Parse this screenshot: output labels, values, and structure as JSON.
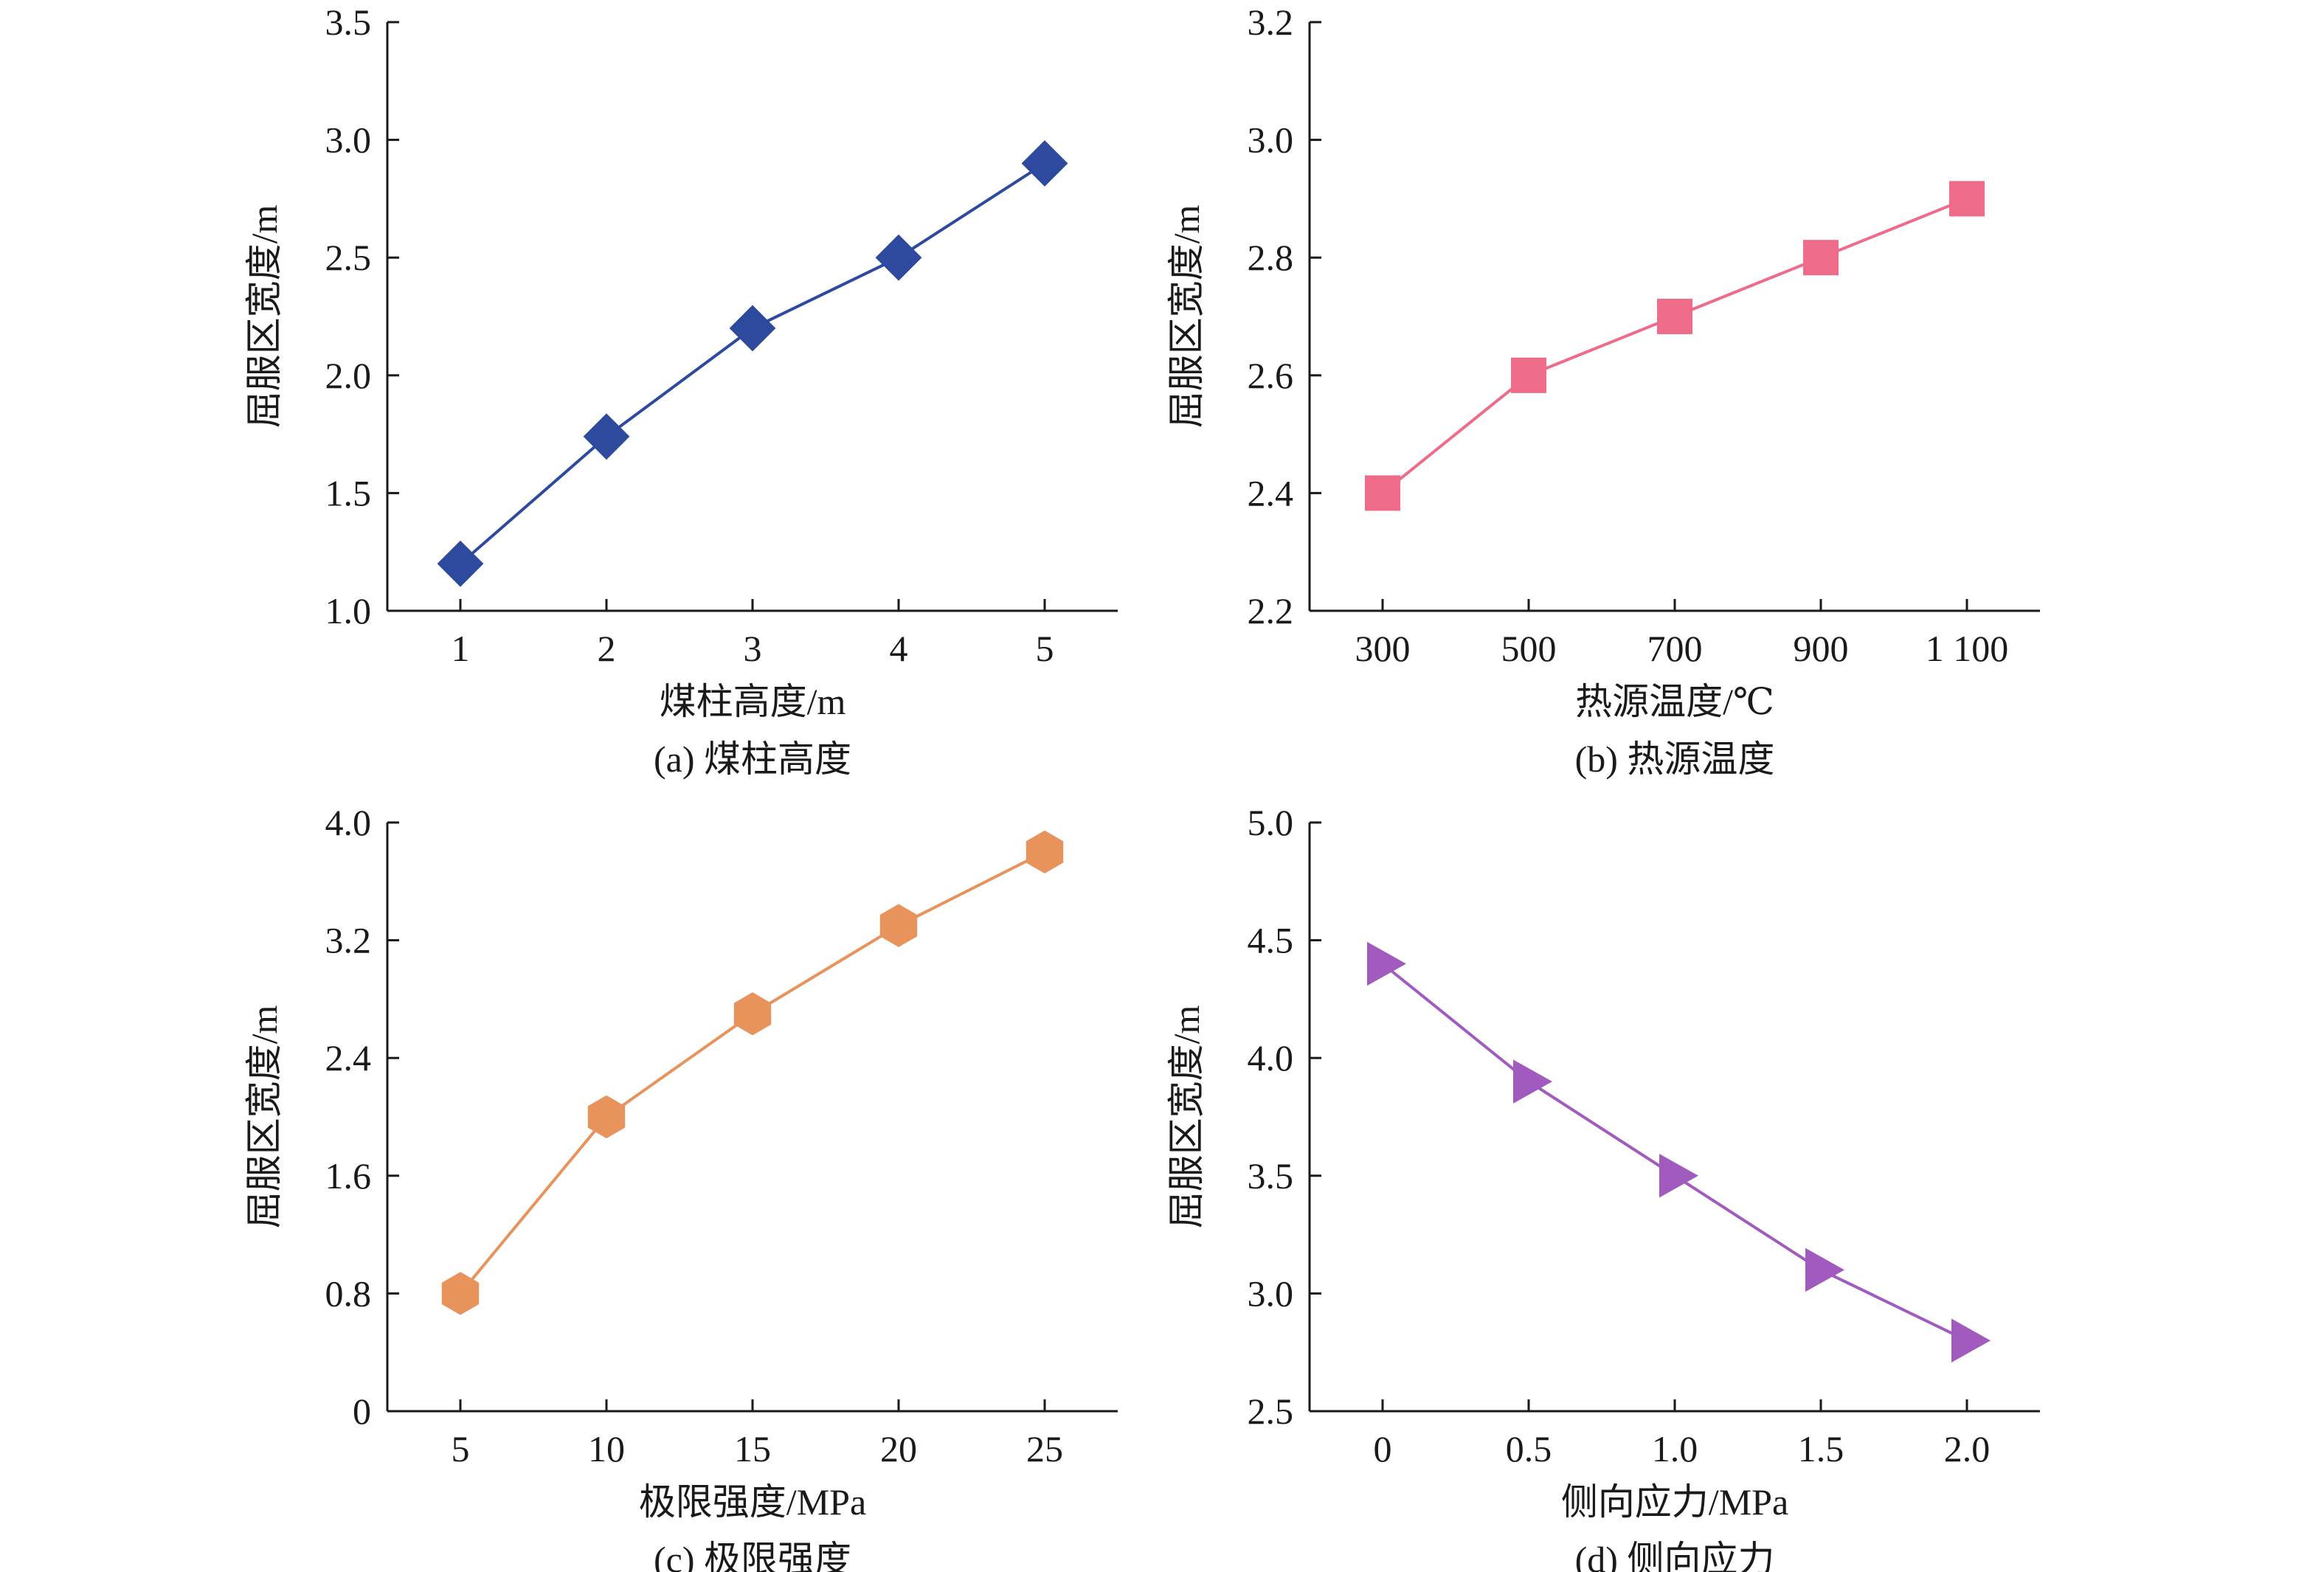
{
  "chart_data": [
    {
      "type": "line",
      "caption": "(a) 煤柱高度",
      "xlabel": "煤柱高度/m",
      "ylabel": "屈服区宽度/m",
      "x": [
        1,
        2,
        3,
        4,
        5
      ],
      "xticks": [
        "1",
        "2",
        "3",
        "4",
        "5"
      ],
      "xlim": [
        0.5,
        5.5
      ],
      "ylim": [
        1.0,
        3.5
      ],
      "yticks": [
        "1.0",
        "1.5",
        "2.0",
        "2.5",
        "3.0",
        "3.5"
      ],
      "series": [
        {
          "values": [
            1.2,
            1.74,
            2.2,
            2.5,
            2.9
          ],
          "color": "#2e4a9e",
          "marker": "diamond"
        }
      ]
    },
    {
      "type": "line",
      "caption": "(b) 热源温度",
      "xlabel": "热源温度/℃",
      "ylabel": "屈服区宽度/m",
      "x": [
        300,
        500,
        700,
        900,
        1100
      ],
      "xticks": [
        "300",
        "500",
        "700",
        "900",
        "1 100"
      ],
      "xlim": [
        200,
        1200
      ],
      "ylim": [
        2.2,
        3.2
      ],
      "yticks": [
        "2.2",
        "2.4",
        "2.6",
        "2.8",
        "3.0",
        "3.2"
      ],
      "series": [
        {
          "values": [
            2.4,
            2.6,
            2.7,
            2.8,
            2.9
          ],
          "color": "#ee6b8a",
          "marker": "square"
        }
      ]
    },
    {
      "type": "line",
      "caption": "(c) 极限强度",
      "xlabel": "极限强度/MPa",
      "ylabel": "屈服区宽度/m",
      "x": [
        5,
        10,
        15,
        20,
        25
      ],
      "xticks": [
        "5",
        "10",
        "15",
        "20",
        "25"
      ],
      "xlim": [
        2.5,
        27.5
      ],
      "ylim": [
        0,
        4.0
      ],
      "yticks": [
        "0",
        "0.8",
        "1.6",
        "2.4",
        "3.2",
        "4.0"
      ],
      "series": [
        {
          "values": [
            0.8,
            2.0,
            2.7,
            3.3,
            3.8
          ],
          "color": "#e8925c",
          "marker": "hexagon"
        }
      ]
    },
    {
      "type": "line",
      "caption": "(d) 侧向应力",
      "xlabel": "侧向应力/MPa",
      "ylabel": "屈服区宽度/m",
      "x": [
        0,
        0.5,
        1.0,
        1.5,
        2.0
      ],
      "xticks": [
        "0",
        "0.5",
        "1.0",
        "1.5",
        "2.0"
      ],
      "xlim": [
        -0.25,
        2.25
      ],
      "ylim": [
        2.5,
        5.0
      ],
      "yticks": [
        "2.5",
        "3.0",
        "3.5",
        "4.0",
        "4.5",
        "5.0"
      ],
      "series": [
        {
          "values": [
            4.4,
            3.9,
            3.5,
            3.1,
            2.8
          ],
          "color": "#a15bbf",
          "marker": "triangle-right"
        }
      ]
    }
  ]
}
